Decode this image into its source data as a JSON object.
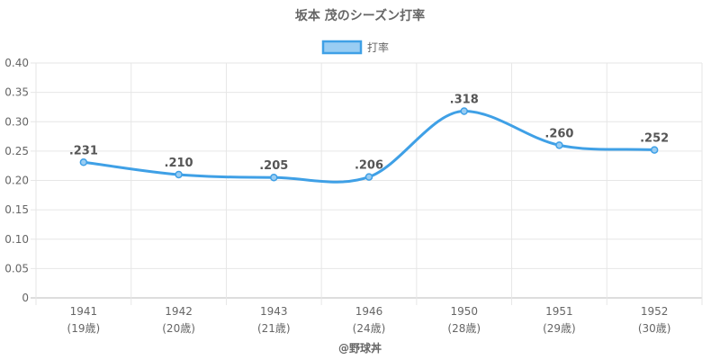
{
  "chart_data": {
    "type": "line",
    "title": "坂本 茂のシーズン打率",
    "x": [
      "1941",
      "1942",
      "1943",
      "1946",
      "1950",
      "1951",
      "1952"
    ],
    "x_sublabels": [
      "(19歳)",
      "(20歳)",
      "(21歳)",
      "(24歳)",
      "(28歳)",
      "(29歳)",
      "(30歳)"
    ],
    "series": [
      {
        "name": "打率",
        "values": [
          0.231,
          0.21,
          0.205,
          0.206,
          0.318,
          0.26,
          0.252
        ],
        "data_labels": [
          ".231",
          ".210",
          ".205",
          ".206",
          ".318",
          ".260",
          ".252"
        ],
        "color": "#3fa0e6",
        "fill": "#99cdf3"
      }
    ],
    "ylim": [
      0,
      0.4
    ],
    "yticks": [
      "0",
      "0.05",
      "0.10",
      "0.15",
      "0.20",
      "0.25",
      "0.30",
      "0.35",
      "0.40"
    ],
    "legend": "top-center",
    "grid": true,
    "credit": "@野球丼"
  }
}
